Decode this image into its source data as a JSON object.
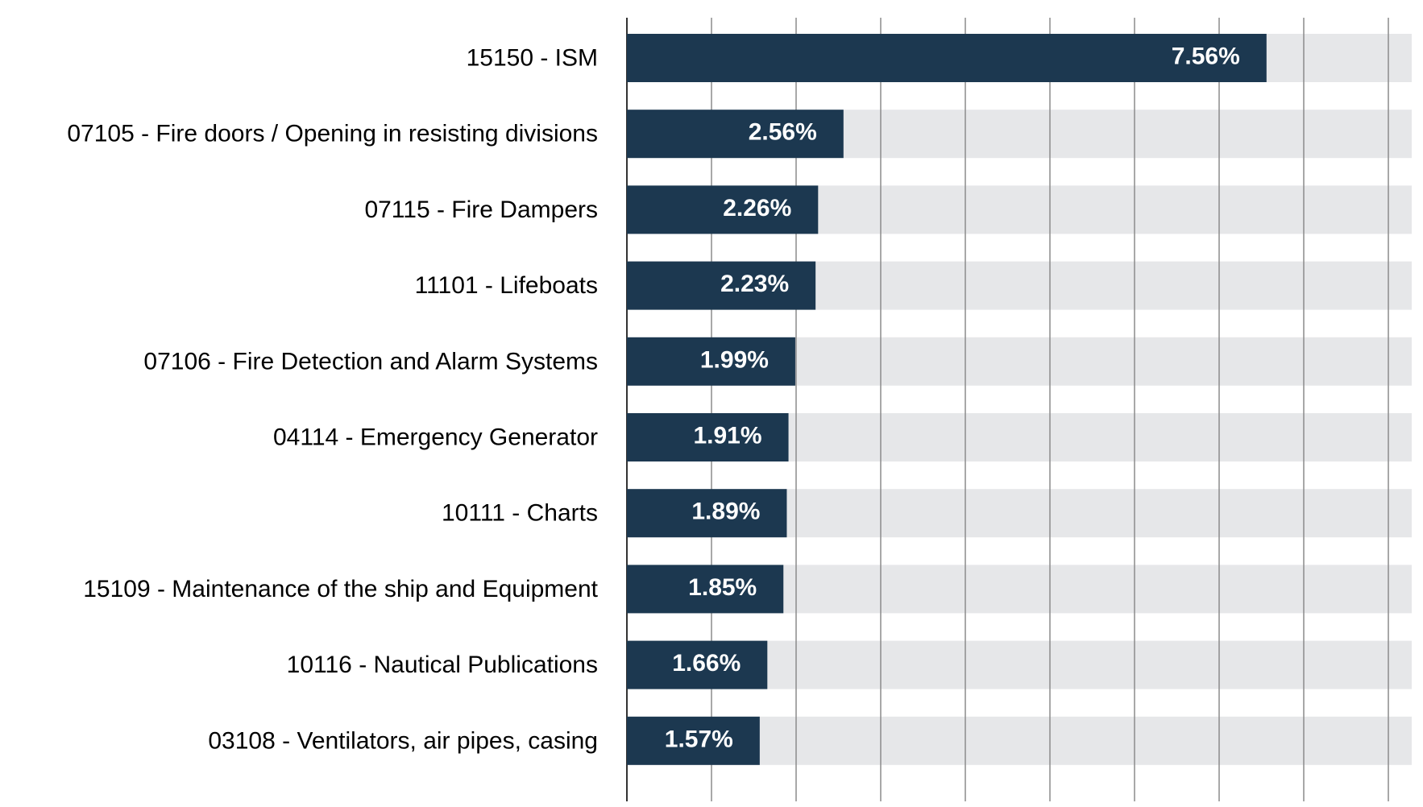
{
  "chart_data": {
    "type": "bar",
    "orientation": "horizontal",
    "categories": [
      "15150 - ISM",
      "07105 - Fire doors / Opening in resisting divisions",
      "07115 - Fire Dampers",
      "11101 - Lifeboats",
      "07106 - Fire Detection and Alarm Systems",
      "04114 - Emergency Generator",
      "10111 - Charts",
      "15109 - Maintenance of the ship and Equipment",
      "10116 - Nautical Publications",
      "03108 - Ventilators, air pipes, casing"
    ],
    "values": [
      7.56,
      2.56,
      2.26,
      2.23,
      1.99,
      1.91,
      1.89,
      1.85,
      1.66,
      1.57
    ],
    "value_labels": [
      "7.56%",
      "2.56%",
      "2.26%",
      "2.23%",
      "1.99%",
      "1.91%",
      "1.89%",
      "1.85%",
      "1.66%",
      "1.57%"
    ],
    "xlim": [
      0,
      9.25
    ],
    "x_grid_step": 1,
    "grid": true,
    "background_track": true,
    "bar_color": "#1c3850",
    "track_color": "#e6e7e9",
    "grid_color": "#8c8c8c",
    "label_color": "#000000",
    "value_label_color": "#ffffff"
  }
}
